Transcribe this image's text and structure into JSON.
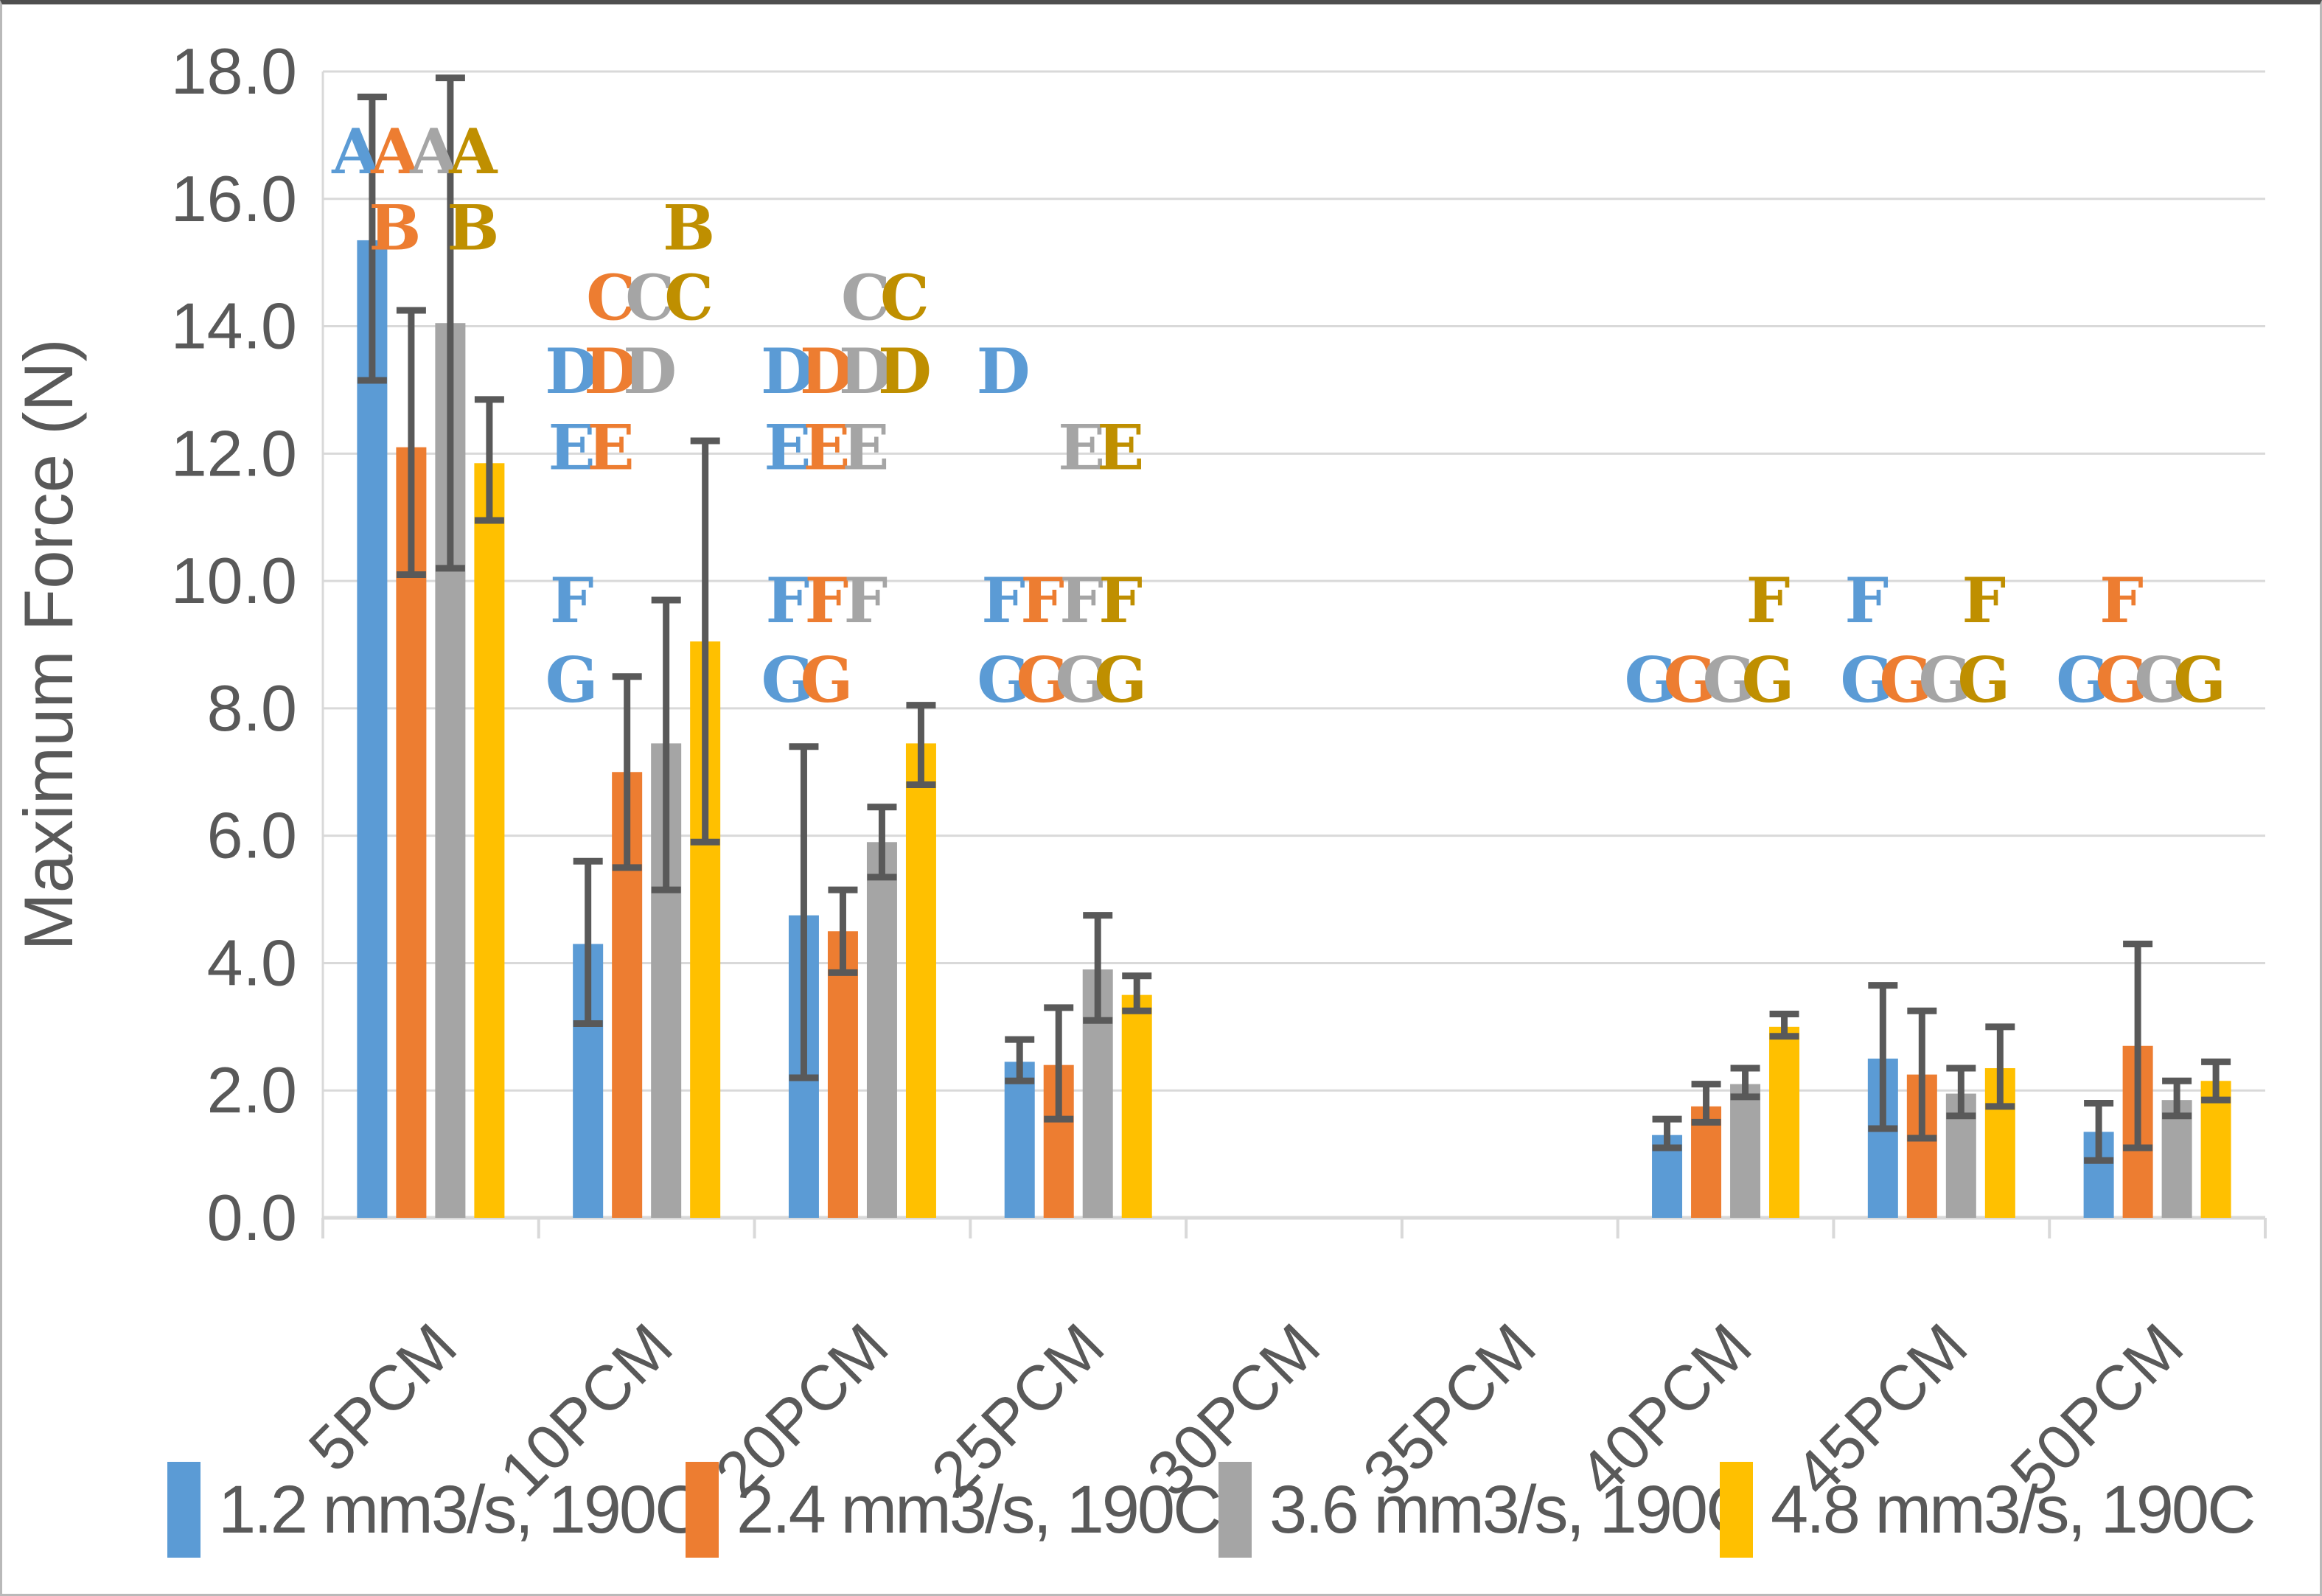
{
  "chart_data": {
    "type": "bar",
    "title": "",
    "xlabel": "",
    "ylabel": "Maximum Force (N)",
    "ylim": [
      0,
      18
    ],
    "ytick_step": 2,
    "y_tick_labels": [
      "18.0",
      "16.0",
      "14.0",
      "12.0",
      "10.0",
      "8.0",
      "6.0",
      "4.0",
      "2.0",
      "0.0"
    ],
    "grid": "horizontal",
    "legend_position": "bottom",
    "categories": [
      "5PCM",
      "10PCM",
      "20PCM",
      "25PCM",
      "30PCM",
      "35PCM",
      "40PCM",
      "45PCM",
      "50PCM"
    ],
    "series": [
      {
        "name": "1.2 mm3/s, 190C",
        "color": "#5B9BD5",
        "letter_color": "#5B9BD5",
        "values": [
          15.35,
          4.3,
          4.75,
          2.45,
          null,
          null,
          1.3,
          2.5,
          1.35
        ],
        "err_low": [
          13.15,
          3.05,
          2.2,
          2.15,
          null,
          null,
          1.1,
          1.4,
          0.9
        ],
        "err_high": [
          17.6,
          5.6,
          7.4,
          2.8,
          null,
          null,
          1.55,
          3.65,
          1.8
        ]
      },
      {
        "name": "2.4 mm3/s, 190C",
        "color": "#ED7D31",
        "letter_color": "#ED7D31",
        "values": [
          12.1,
          7.0,
          4.5,
          2.4,
          null,
          null,
          1.75,
          2.25,
          2.7
        ],
        "err_low": [
          10.1,
          5.5,
          3.85,
          1.55,
          null,
          null,
          1.5,
          1.25,
          1.1
        ],
        "err_high": [
          14.25,
          8.5,
          5.15,
          3.3,
          null,
          null,
          2.1,
          3.25,
          4.3
        ]
      },
      {
        "name": "3.6 mm3/s, 190C",
        "color": "#A5A5A5",
        "letter_color": "#A5A5A5",
        "values": [
          14.05,
          7.45,
          5.9,
          3.9,
          null,
          null,
          2.1,
          1.95,
          1.85
        ],
        "err_low": [
          10.2,
          5.15,
          5.35,
          3.1,
          null,
          null,
          1.9,
          1.6,
          1.6
        ],
        "err_high": [
          17.9,
          9.7,
          6.45,
          4.75,
          null,
          null,
          2.35,
          2.35,
          2.15
        ]
      },
      {
        "name": "4.8 mm3/s, 190C",
        "color": "#FFC000",
        "letter_color": "#BF8F00",
        "values": [
          11.85,
          9.05,
          7.45,
          3.5,
          null,
          null,
          3.0,
          2.35,
          2.15
        ],
        "err_low": [
          10.95,
          5.9,
          6.8,
          3.25,
          null,
          null,
          2.85,
          1.75,
          1.85
        ],
        "err_high": [
          12.85,
          12.2,
          8.05,
          3.8,
          null,
          null,
          3.2,
          3.0,
          2.45
        ]
      }
    ],
    "annotations": {
      "rows": {
        "A": 16.75,
        "B": 15.55,
        "C": 14.45,
        "D": 13.3,
        "E": 12.1,
        "F": 9.7,
        "G": 8.45
      },
      "items": [
        {
          "category": "5PCM",
          "letter": "A",
          "series": [
            0,
            1,
            2,
            3
          ]
        },
        {
          "category": "5PCM",
          "letter": "B",
          "series": [
            1,
            3
          ]
        },
        {
          "category": "10PCM",
          "letter": "B",
          "series": [
            3
          ]
        },
        {
          "category": "10PCM",
          "letter": "C",
          "series": [
            1,
            2,
            3
          ]
        },
        {
          "category": "10PCM",
          "letter": "D",
          "series": [
            0,
            1,
            2
          ]
        },
        {
          "category": "10PCM",
          "letter": "E",
          "series": [
            0,
            1
          ]
        },
        {
          "category": "10PCM",
          "letter": "F",
          "series": [
            0
          ]
        },
        {
          "category": "10PCM",
          "letter": "G",
          "series": [
            0
          ]
        },
        {
          "category": "20PCM",
          "letter": "C",
          "series": [
            2,
            3
          ]
        },
        {
          "category": "20PCM",
          "letter": "D",
          "series": [
            0,
            1,
            2,
            3
          ]
        },
        {
          "category": "20PCM",
          "letter": "E",
          "series": [
            0,
            1,
            2
          ]
        },
        {
          "category": "20PCM",
          "letter": "F",
          "series": [
            0,
            1,
            2
          ]
        },
        {
          "category": "20PCM",
          "letter": "G",
          "series": [
            0,
            1
          ]
        },
        {
          "category": "25PCM",
          "letter": "D",
          "series": [
            0
          ]
        },
        {
          "category": "25PCM",
          "letter": "E",
          "series": [
            2,
            3
          ]
        },
        {
          "category": "25PCM",
          "letter": "F",
          "series": [
            0,
            1,
            2,
            3
          ]
        },
        {
          "category": "25PCM",
          "letter": "G",
          "series": [
            0,
            1,
            2,
            3
          ]
        },
        {
          "category": "40PCM",
          "letter": "F",
          "series": [
            3
          ]
        },
        {
          "category": "40PCM",
          "letter": "G",
          "series": [
            0,
            1,
            2,
            3
          ]
        },
        {
          "category": "45PCM",
          "letter": "F",
          "series": [
            0,
            3
          ]
        },
        {
          "category": "45PCM",
          "letter": "G",
          "series": [
            0,
            1,
            2,
            3
          ]
        },
        {
          "category": "50PCM",
          "letter": "F",
          "series": [
            1
          ]
        },
        {
          "category": "50PCM",
          "letter": "G",
          "series": [
            0,
            1,
            2,
            3
          ]
        }
      ]
    },
    "style": {
      "grid_color": "#D9D9D9",
      "axis_text_color": "#595959",
      "error_bar_color": "#595959"
    }
  }
}
